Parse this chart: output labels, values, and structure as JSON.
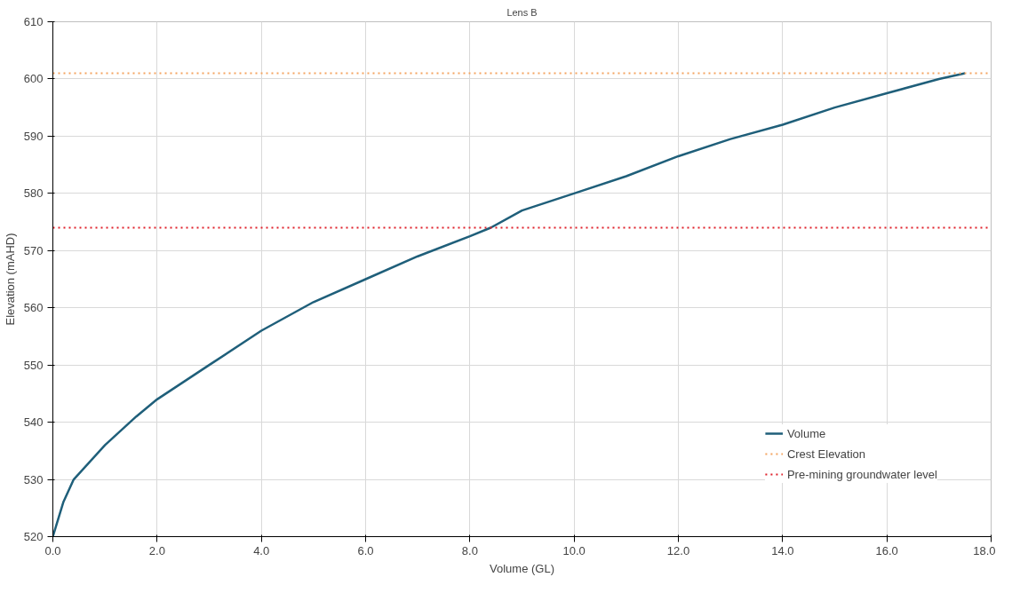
{
  "chart_data": {
    "type": "line",
    "title": "Lens B",
    "xlabel": "Volume (GL)",
    "ylabel": "Elevation (mAHD)",
    "x": [
      0,
      0.2,
      0.4,
      1.0,
      1.6,
      2.0,
      3.0,
      4.0,
      5.0,
      6.0,
      7.0,
      8.0,
      8.4,
      9.0,
      10.0,
      11.0,
      12.0,
      13.0,
      14.0,
      15.0,
      16.0,
      17.0,
      17.5
    ],
    "series": [
      {
        "name": "Volume",
        "color": "#1f5f7a",
        "values": [
          520,
          526,
          530,
          536,
          541,
          544,
          550,
          556,
          561,
          565,
          569,
          572.5,
          574,
          577,
          580,
          583,
          586.5,
          589.5,
          592,
          595,
          597.5,
          600,
          601
        ]
      }
    ],
    "ref_lines": [
      {
        "axis": "y",
        "value": 601,
        "label": "Crest Elevation",
        "color": "#f4a460",
        "line_style": "dotted"
      },
      {
        "axis": "y",
        "value": 574,
        "label": "Pre-mining groundwater level",
        "color": "#e0202a",
        "line_style": "dotted"
      }
    ],
    "xlim": [
      0,
      18
    ],
    "xticks": [
      {
        "value": 0,
        "label": "0.0"
      },
      {
        "value": 2,
        "label": "2.0"
      },
      {
        "value": 4,
        "label": "4.0"
      },
      {
        "value": 6,
        "label": "6.0"
      },
      {
        "value": 8,
        "label": "8.0"
      },
      {
        "value": 10,
        "label": "10.0"
      },
      {
        "value": 12,
        "label": "12.0"
      },
      {
        "value": 14,
        "label": "14.0"
      },
      {
        "value": 16,
        "label": "16.0"
      },
      {
        "value": 18,
        "label": "18.0"
      }
    ],
    "ylim": [
      520,
      610
    ],
    "yticks": [
      520,
      530,
      540,
      550,
      560,
      570,
      580,
      590,
      600,
      610
    ],
    "grid": true,
    "legend": "bottom right",
    "marker": "none",
    "line_style": "solid"
  }
}
